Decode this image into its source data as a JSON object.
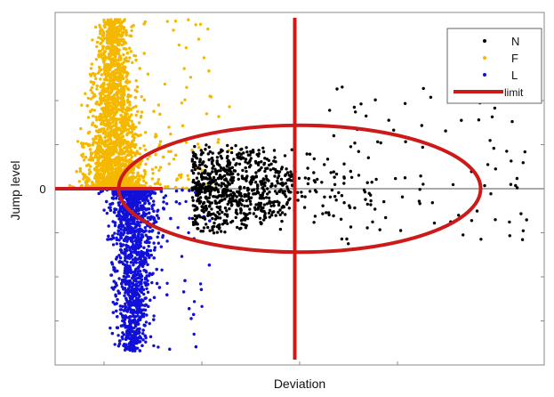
{
  "chart_data": {
    "type": "scatter",
    "title": "",
    "xlabel": "Deviation",
    "ylabel": "Jump level",
    "xlim": [
      0,
      100
    ],
    "ylim": [
      -100,
      100
    ],
    "y_tick_labels": [
      {
        "value": 0,
        "label": "0"
      }
    ],
    "grid": false,
    "zero_line": true,
    "legend": {
      "placement": "top-right",
      "entries": [
        {
          "label": "N",
          "color": "#000000",
          "kind": "marker"
        },
        {
          "label": "F",
          "color": "#f5b800",
          "kind": "marker"
        },
        {
          "label": "L",
          "color": "#1010d8",
          "kind": "marker"
        },
        {
          "label": "limit",
          "color": "#cc1a1a",
          "kind": "line"
        }
      ]
    },
    "series": [
      {
        "name": "F",
        "color": "#f5b800",
        "distribution": {
          "x_center": 12,
          "x_spread": 14,
          "y_min": 0,
          "y_max": 96,
          "count": 2600
        }
      },
      {
        "name": "L",
        "color": "#1010d8",
        "distribution": {
          "x_center": 16,
          "x_spread": 11,
          "y_min": -92,
          "y_max": 0,
          "count": 1900
        }
      },
      {
        "name": "N",
        "color": "#000000",
        "distribution": {
          "x_center": 38,
          "x_spread": 18,
          "y_min": -27,
          "y_max": 35,
          "count": 900
        }
      }
    ],
    "limit": {
      "color": "#cc1a1a",
      "vertical_line_x": 49,
      "horizontal_line": {
        "y": 0,
        "x_from": 0,
        "x_to": 22
      },
      "ellipse": {
        "cx": 50,
        "cy": 0,
        "rx": 37,
        "ry": 36
      }
    }
  }
}
